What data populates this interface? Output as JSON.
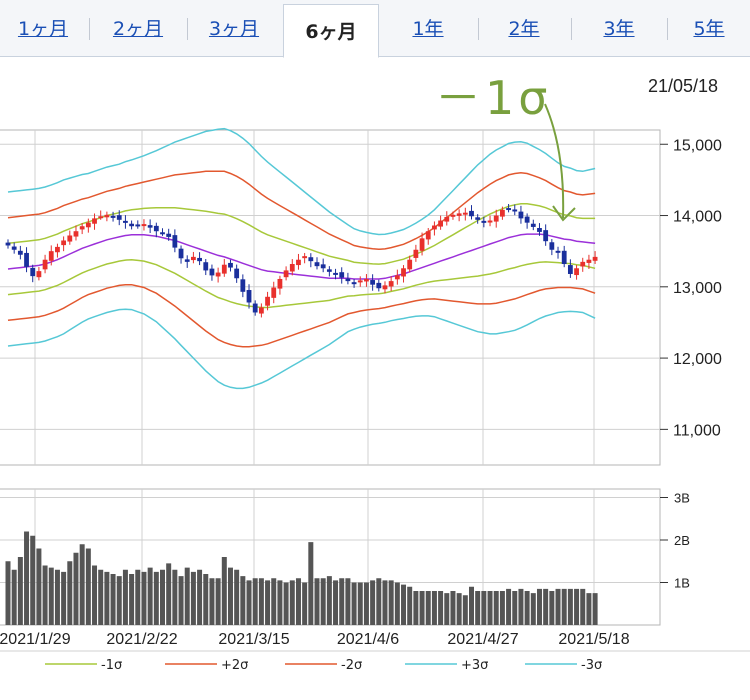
{
  "tabs": [
    {
      "label": "1ヶ月",
      "active": false
    },
    {
      "label": "2ヶ月",
      "active": false
    },
    {
      "label": "3ヶ月",
      "active": false
    },
    {
      "label": "6ヶ月",
      "active": true
    },
    {
      "label": "1年",
      "active": false
    },
    {
      "label": "2年",
      "active": false
    },
    {
      "label": "3年",
      "active": false
    },
    {
      "label": "5年",
      "active": false
    }
  ],
  "date_label": "21/05/18",
  "annotation": "－1σ",
  "colors": {
    "up": "#e8302c",
    "down": "#1a2f9c",
    "ma": "#9b30d9",
    "sigma1": "#a7c83a",
    "sigma2": "#e2582f",
    "sigma3": "#56c8d6",
    "volume": "#555555",
    "annotation": "#79a03e"
  },
  "chart_data": [
    {
      "type": "candlestick",
      "ylim": [
        10500,
        15200
      ],
      "yticks": [
        "15,000",
        "14,000",
        "13,000",
        "12,000",
        "11,000"
      ],
      "ytick_values": [
        15000,
        14000,
        13000,
        12000,
        11000
      ],
      "xlabels": [
        "2021/1/29",
        "2021/2/22",
        "2021/3/15",
        "2021/4/6",
        "2021/4/27",
        "2021/5/18"
      ],
      "grid": true,
      "close": [
        13580,
        13520,
        13450,
        13280,
        13150,
        13220,
        13380,
        13500,
        13560,
        13650,
        13720,
        13780,
        13850,
        13900,
        13960,
        13990,
        14010,
        13980,
        13940,
        13900,
        13850,
        13870,
        13880,
        13830,
        13780,
        13760,
        13700,
        13550,
        13400,
        13350,
        13420,
        13360,
        13230,
        13160,
        13200,
        13310,
        13270,
        13120,
        12930,
        12780,
        12640,
        12710,
        12860,
        12990,
        13110,
        13230,
        13320,
        13380,
        13430,
        13360,
        13290,
        13260,
        13210,
        13180,
        13130,
        13080,
        13040,
        13090,
        13110,
        13030,
        12980,
        13020,
        13080,
        13160,
        13260,
        13380,
        13520,
        13680,
        13780,
        13860,
        13930,
        13980,
        14010,
        14030,
        14040,
        13990,
        13940,
        13900,
        13930,
        14000,
        14080,
        14100,
        14070,
        13960,
        13900,
        13840,
        13770,
        13640,
        13520,
        13480,
        13320,
        13180,
        13260,
        13350,
        13380,
        13420
      ],
      "ma": [
        13250,
        13260,
        13270,
        13280,
        13290,
        13300,
        13320,
        13350,
        13380,
        13420,
        13460,
        13500,
        13540,
        13570,
        13600,
        13630,
        13660,
        13680,
        13700,
        13720,
        13730,
        13730,
        13730,
        13720,
        13710,
        13690,
        13670,
        13650,
        13620,
        13590,
        13560,
        13530,
        13500,
        13470,
        13440,
        13420,
        13390,
        13360,
        13330,
        13300,
        13270,
        13240,
        13220,
        13210,
        13200,
        13190,
        13180,
        13170,
        13160,
        13150,
        13140,
        13130,
        13120,
        13120,
        13120,
        13120,
        13110,
        13110,
        13110,
        13110,
        13110,
        13120,
        13140,
        13160,
        13180,
        13210,
        13240,
        13270,
        13300,
        13330,
        13360,
        13390,
        13420,
        13450,
        13480,
        13510,
        13540,
        13570,
        13600,
        13630,
        13660,
        13690,
        13710,
        13730,
        13740,
        13740,
        13740,
        13730,
        13710,
        13690,
        13670,
        13660,
        13640,
        13630,
        13620,
        13610
      ],
      "sigma": [
        360,
        360,
        360,
        360,
        360,
        360,
        360,
        360,
        360,
        360,
        355,
        350,
        345,
        340,
        340,
        340,
        340,
        340,
        340,
        345,
        350,
        360,
        370,
        385,
        400,
        420,
        440,
        460,
        480,
        500,
        520,
        540,
        560,
        575,
        590,
        600,
        600,
        595,
        585,
        570,
        550,
        530,
        510,
        490,
        470,
        450,
        430,
        410,
        390,
        370,
        350,
        330,
        310,
        290,
        270,
        250,
        235,
        225,
        218,
        212,
        208,
        206,
        205,
        206,
        208,
        212,
        218,
        226,
        236,
        250,
        270,
        290,
        310,
        330,
        350,
        370,
        390,
        405,
        420,
        430,
        435,
        440,
        440,
        435,
        425,
        410,
        395,
        380,
        365,
        350,
        340,
        335,
        330,
        330,
        340,
        350
      ],
      "volume_ylim": [
        0,
        3200
      ],
      "volume_ticks": [
        "3B",
        "2B",
        "1B"
      ],
      "volume_tick_values": [
        3000,
        2000,
        1000
      ],
      "volume": [
        1500,
        1300,
        1600,
        2200,
        2100,
        1800,
        1400,
        1350,
        1300,
        1250,
        1500,
        1700,
        1900,
        1800,
        1400,
        1300,
        1250,
        1200,
        1150,
        1300,
        1200,
        1300,
        1250,
        1350,
        1250,
        1300,
        1450,
        1300,
        1150,
        1350,
        1250,
        1300,
        1200,
        1100,
        1100,
        1600,
        1350,
        1300,
        1150,
        1050,
        1100,
        1100,
        1050,
        1100,
        1050,
        1000,
        1050,
        1100,
        1000,
        1950,
        1100,
        1100,
        1150,
        1050,
        1100,
        1100,
        1000,
        1000,
        1000,
        1050,
        1100,
        1050,
        1050,
        1000,
        950,
        900,
        800,
        800,
        800,
        800,
        800,
        750,
        800,
        750,
        700,
        900,
        800,
        800,
        800,
        800,
        800,
        850,
        800,
        850,
        800,
        750,
        850,
        850,
        800,
        850,
        850,
        850,
        850,
        850,
        750,
        750
      ]
    }
  ],
  "legend": [
    {
      "label": "-1σ",
      "color": "#a7c83a"
    },
    {
      "label": "+2σ",
      "color": "#e2582f"
    },
    {
      "label": "-2σ",
      "color": "#e2582f"
    },
    {
      "label": "+3σ",
      "color": "#56c8d6"
    },
    {
      "label": "-3σ",
      "color": "#56c8d6"
    }
  ]
}
